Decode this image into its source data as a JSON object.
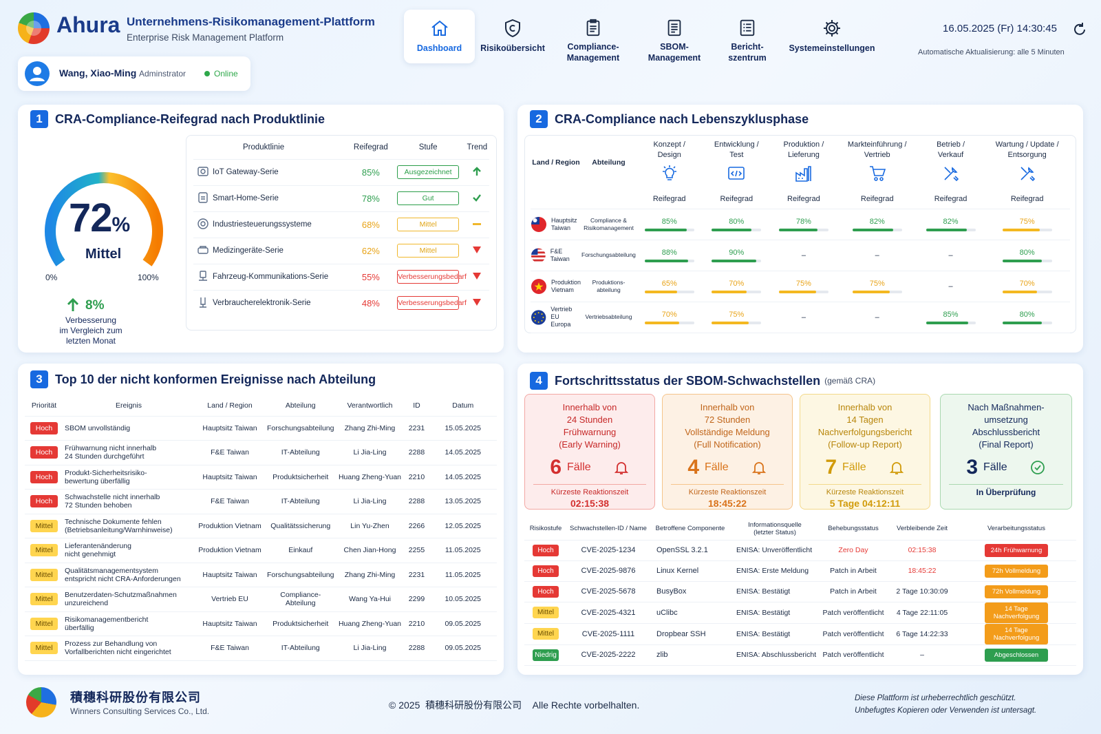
{
  "header": {
    "brand": "Ahura",
    "title": "Unternehmens-Risikomanagement-Plattform",
    "subtitle": "Enterprise Risk Management Platform",
    "datetime": "16.05.2025 (Fr) 14:30:45",
    "auto_refresh": "Automatische Aktualisierung: alle 5 Minuten"
  },
  "user": {
    "name": "Wang, Xiao-Ming",
    "role": "Adminstrator",
    "status": "Online"
  },
  "nav": [
    {
      "l1": "Dashboard",
      "l2": ""
    },
    {
      "l1": "Risikoübersicht",
      "l2": ""
    },
    {
      "l1": "Compliance-",
      "l2": "Management"
    },
    {
      "l1": "SBOM-",
      "l2": "Management"
    },
    {
      "l1": "Bericht-",
      "l2": "szentrum"
    },
    {
      "l1": "Systemeinstellungen",
      "l2": ""
    }
  ],
  "s1": {
    "num": "1",
    "title": "CRA-Compliance-Reifegrad nach Produktlinie",
    "gauge": {
      "value": "72",
      "unit": "%",
      "level": "Mittel",
      "min": "0%",
      "max": "100%",
      "fraction": 0.72
    },
    "improve": {
      "value": "8%",
      "l1": "Verbesserung",
      "l2": "im Vergleich zum",
      "l3": "letzten Monat"
    },
    "headers": [
      "Produktlinie",
      "Reifegrad",
      "Stufe",
      "Trend"
    ],
    "rows": [
      {
        "name": "IoT Gateway-Serie",
        "pct": "85%",
        "stufe": "Ausgezeichnet"
      },
      {
        "name": "Smart-Home-Serie",
        "pct": "78%",
        "stufe": "Gut"
      },
      {
        "name": "Industriesteuerungssysteme",
        "pct": "68%",
        "stufe": "Mittel"
      },
      {
        "name": "Medizingeräte-Serie",
        "pct": "62%",
        "stufe": "Mittel"
      },
      {
        "name": "Fahrzeug-Kommunikations-Serie",
        "pct": "55%",
        "stufe": "Verbesserungsbedarf"
      },
      {
        "name": "Verbraucherelektronik-Serie",
        "pct": "48%",
        "stufe": "Verbesserungsbedarf"
      }
    ]
  },
  "s2": {
    "num": "2",
    "title": "CRA-Compliance nach Lebenszyklusphase",
    "col_region": "Land / Region",
    "col_dept": "Abteilung",
    "reifegrad": "Reifegrad",
    "phases": [
      {
        "l1": "Konzept /",
        "l2": "Design"
      },
      {
        "l1": "Entwicklung /",
        "l2": "Test"
      },
      {
        "l1": "Produktion /",
        "l2": "Lieferung"
      },
      {
        "l1": "Markteinführung /",
        "l2": "Vertrieb"
      },
      {
        "l1": "Betrieb /",
        "l2": "Verkauf"
      },
      {
        "l1": "Wartung / Update /",
        "l2": "Entsorgung"
      }
    ],
    "rows": [
      {
        "r1": "Hauptsitz",
        "r2": "Taiwan",
        "d1": "Compliance &",
        "d2": "Risikomanagement",
        "v": [
          "85%",
          "80%",
          "78%",
          "82%",
          "82%",
          "75%"
        ]
      },
      {
        "r1": "F&E Taiwan",
        "r2": "",
        "d1": "Forschungsabteilung",
        "d2": "",
        "v": [
          "88%",
          "90%",
          "–",
          "–",
          "–",
          "80%"
        ]
      },
      {
        "r1": "Produktion",
        "r2": "Vietnam",
        "d1": "Produktions-",
        "d2": "abteilung",
        "v": [
          "65%",
          "70%",
          "75%",
          "75%",
          "–",
          "70%"
        ]
      },
      {
        "r1": "Vertrieb EU",
        "r2": "Europa",
        "d1": "Vertriebsabteilung",
        "d2": "",
        "v": [
          "70%",
          "75%",
          "–",
          "–",
          "85%",
          "80%"
        ]
      }
    ]
  },
  "s3": {
    "num": "3",
    "title": "Top 10 der nicht konformen Ereignisse nach Abteilung",
    "headers": [
      "Priorität",
      "Ereignis",
      "Land / Region",
      "Abteilung",
      "Verantwortlich",
      "ID",
      "Datum"
    ],
    "rows": [
      {
        "p": "Hoch",
        "e1": "SBOM unvollständig",
        "e2": "",
        "land": "Hauptsitz Taiwan",
        "abt": "Forschungsabteilung",
        "ver": "Zhang Zhi-Ming",
        "id": "2231",
        "dat": "15.05.2025"
      },
      {
        "p": "Hoch",
        "e1": "Frühwarnung nicht innerhalb",
        "e2": "24 Stunden durchgeführt",
        "land": "F&E Taiwan",
        "abt": "IT-Abteilung",
        "ver": "Li Jia-Ling",
        "id": "2288",
        "dat": "14.05.2025"
      },
      {
        "p": "Hoch",
        "e1": "Produkt-Sicherheitsrisiko-",
        "e2": "bewertung überfällig",
        "land": "Hauptsitz Taiwan",
        "abt": "Produktsicherheit",
        "ver": "Huang Zheng-Yuan",
        "id": "2210",
        "dat": "14.05.2025"
      },
      {
        "p": "Hoch",
        "e1": "Schwachstelle nicht innerhalb",
        "e2": "72 Stunden behoben",
        "land": "F&E Taiwan",
        "abt": "IT-Abteilung",
        "ver": "Li Jia-Ling",
        "id": "2288",
        "dat": "13.05.2025"
      },
      {
        "p": "Mittel",
        "e1": "Technische Dokumente fehlen",
        "e2": "(Betriebsanleitung/Warnhinweise)",
        "land": "Produktion Vietnam",
        "abt": "Qualitätssicherung",
        "ver": "Lin Yu-Zhen",
        "id": "2266",
        "dat": "12.05.2025"
      },
      {
        "p": "Mittel",
        "e1": "Lieferantenänderung",
        "e2": "nicht genehmigt",
        "land": "Produktion Vietnam",
        "abt": "Einkauf",
        "ver": "Chen Jian-Hong",
        "id": "2255",
        "dat": "11.05.2025"
      },
      {
        "p": "Mittel",
        "e1": "Qualitätsmanagementsystem",
        "e2": "entspricht nicht CRA-Anforderungen",
        "land": "Hauptsitz Taiwan",
        "abt": "Forschungsabteilung",
        "ver": "Zhang Zhi-Ming",
        "id": "2231",
        "dat": "11.05.2025"
      },
      {
        "p": "Mittel",
        "e1": "Benutzerdaten-Schutzmaßnahmen",
        "e2": "unzureichend",
        "land": "Vertrieb EU",
        "abt": "Compliance-Abteilung",
        "ver": "Wang Ya-Hui",
        "id": "2299",
        "dat": "10.05.2025"
      },
      {
        "p": "Mittel",
        "e1": "Risikomanagementbericht",
        "e2": "überfällig",
        "land": "Hauptsitz Taiwan",
        "abt": "Produktsicherheit",
        "ver": "Huang Zheng-Yuan",
        "id": "2210",
        "dat": "09.05.2025"
      },
      {
        "p": "Mittel",
        "e1": "Prozess zur Behandlung von",
        "e2": "Vorfallberichten nicht eingerichtet",
        "land": "F&E Taiwan",
        "abt": "IT-Abteilung",
        "ver": "Li Jia-Ling",
        "id": "2288",
        "dat": "09.05.2025"
      }
    ]
  },
  "s4": {
    "num": "4",
    "title": "Fortschrittsstatus der SBOM-Schwachstellen",
    "title_note": "(gemäß CRA)",
    "faelle": "Fälle",
    "cards": [
      {
        "l1": "Innerhalb von",
        "l2": "24 Stunden",
        "l3": "Frühwarnung",
        "l4": "(Early Warning)",
        "count": "6",
        "sub": "Kürzeste Reaktionszeit",
        "time": "02:15:38"
      },
      {
        "l1": "Innerhalb von",
        "l2": "72 Stunden",
        "l3": "Vollständige Meldung",
        "l4": "(Full Notification)",
        "count": "4",
        "sub": "Kürzeste Reaktionszeit",
        "time": "18:45:22"
      },
      {
        "l1": "Innerhalb von",
        "l2": "14 Tagen",
        "l3": "Nachverfolgungsbericht",
        "l4": "(Follow-up Report)",
        "count": "7",
        "sub": "Kürzeste Reaktionszeit",
        "time": "5 Tage 04:12:11"
      },
      {
        "l1": "Nach Maßnahmen-",
        "l2": "umsetzung",
        "l3": "Abschlussbericht",
        "l4": "(Final Report)",
        "count": "3",
        "sub": "In Überprüfung",
        "time": ""
      }
    ],
    "headers": [
      {
        "l1": "Risikostufe",
        "l2": ""
      },
      {
        "l1": "Schwachstellen-ID / Name",
        "l2": ""
      },
      {
        "l1": "Betroffene Componente",
        "l2": ""
      },
      {
        "l1": "Informationsquelle",
        "l2": "(letzter Status)"
      },
      {
        "l1": "Behebungsstatus",
        "l2": ""
      },
      {
        "l1": "Verbleibende Zeit",
        "l2": ""
      },
      {
        "l1": "Verarbeitungsstatus",
        "l2": ""
      }
    ],
    "rows": [
      {
        "r": "Hoch",
        "id": "CVE-2025-1234",
        "comp": "OpenSSL 3.2.1",
        "src": "ENISA: Unveröffentlicht",
        "fix": "Zero Day",
        "time": "02:15:38",
        "st": "24h Frühwarnung"
      },
      {
        "r": "Hoch",
        "id": "CVE-2025-9876",
        "comp": "Linux Kernel",
        "src": "ENISA: Erste Meldung",
        "fix": "Patch in Arbeit",
        "time": "18:45:22",
        "st": "72h Vollmeldung"
      },
      {
        "r": "Hoch",
        "id": "CVE-2025-5678",
        "comp": "BusyBox",
        "src": "ENISA: Bestätigt",
        "fix": "Patch in Arbeit",
        "time": "2 Tage 10:30:09",
        "st": "72h Vollmeldung"
      },
      {
        "r": "Mittel",
        "id": "CVE-2025-4321",
        "comp": "uClibc",
        "src": "ENISA: Bestätigt",
        "fix": "Patch veröffentlicht",
        "time": "4 Tage 22:11:05",
        "st": "14 Tage Nachverfolgung"
      },
      {
        "r": "Mittel",
        "id": "CVE-2025-1111",
        "comp": "Dropbear SSH",
        "src": "ENISA: Bestätigt",
        "fix": "Patch veröffentlicht",
        "time": "6 Tage 14:22:33",
        "st": "14 Tage Nachverfolgung"
      },
      {
        "r": "Niedrig",
        "id": "CVE-2025-2222",
        "comp": "zlib",
        "src": "ENISA: Abschlussbericht",
        "fix": "Patch veröffentlicht",
        "time": "–",
        "st": "Abgeschlossen"
      }
    ]
  },
  "footer": {
    "company_cn": "積穗科研股份有限公司",
    "company_en": "Winners Consulting Services Co., Ltd.",
    "copyright": "© 2025  積穗科研股份有限公司    Alle Rechte vorbelhalten.",
    "note1": "Diese Plattform ist urheberrechtlich geschützt.",
    "note2": "Unbefugtes Kopieren oder Verwenden ist untersagt."
  }
}
